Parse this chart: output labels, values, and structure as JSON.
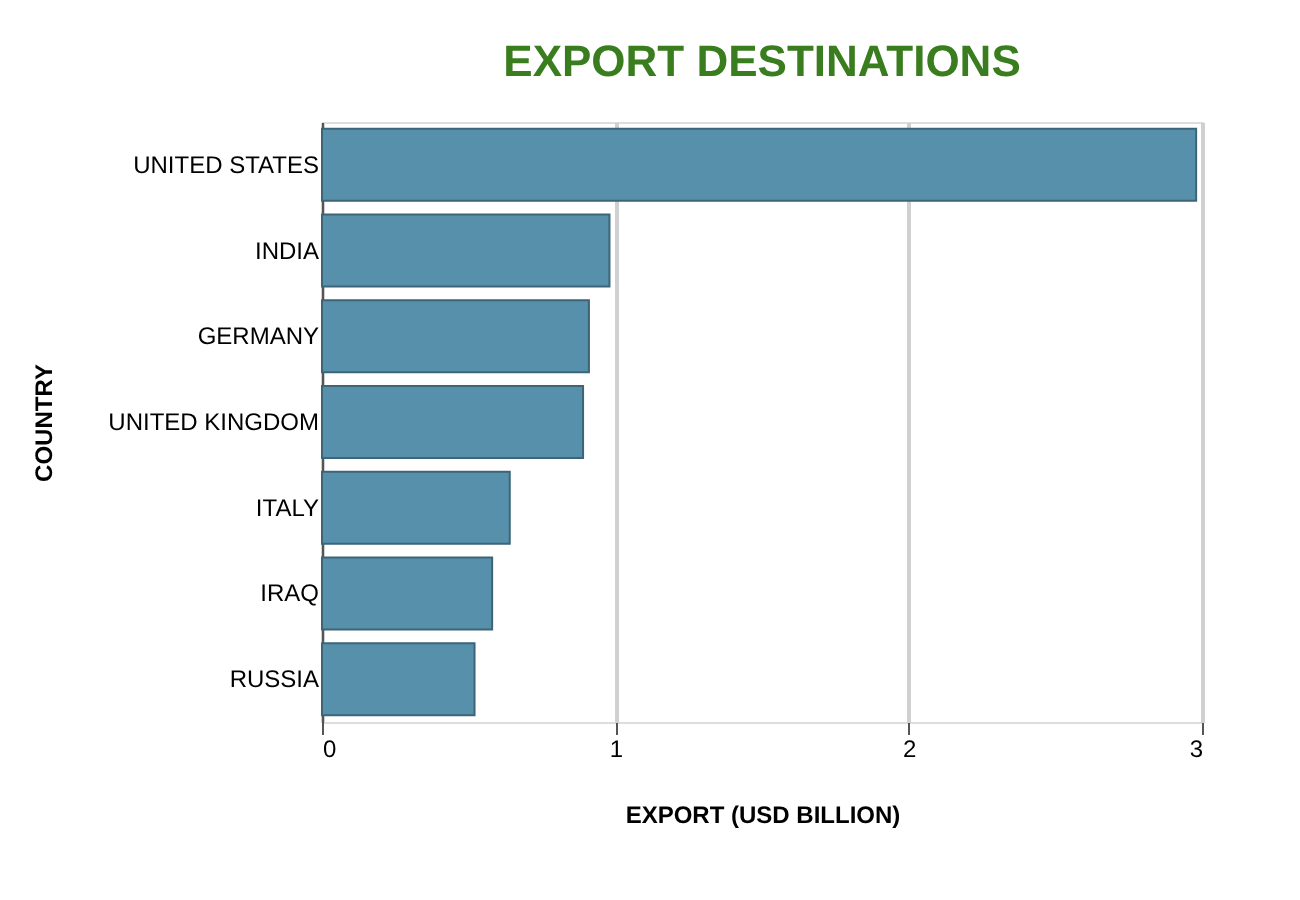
{
  "chart_data": {
    "type": "bar",
    "orientation": "horizontal",
    "title": "EXPORT DESTINATIONS",
    "xlabel": "EXPORT (USD BILLION)",
    "ylabel": "COUNTRY",
    "categories": [
      "UNITED STATES",
      "INDIA",
      "GERMANY",
      "UNITED KINGDOM",
      "ITALY",
      "IRAQ",
      "RUSSIA"
    ],
    "values": [
      2.98,
      0.98,
      0.91,
      0.89,
      0.64,
      0.58,
      0.52
    ],
    "color": "#5690ab",
    "xlim": [
      0,
      3
    ],
    "xticks": [
      0,
      1,
      2,
      3
    ],
    "grid": "x"
  }
}
